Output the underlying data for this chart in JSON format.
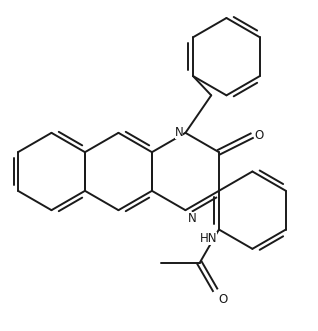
{
  "bg_color": "#ffffff",
  "line_color": "#1a1a1a",
  "lw": 1.4,
  "label_color": "#1a1a1a",
  "font_size": 8.5,
  "label_N": "N",
  "label_O": "O",
  "label_HN": "HN"
}
